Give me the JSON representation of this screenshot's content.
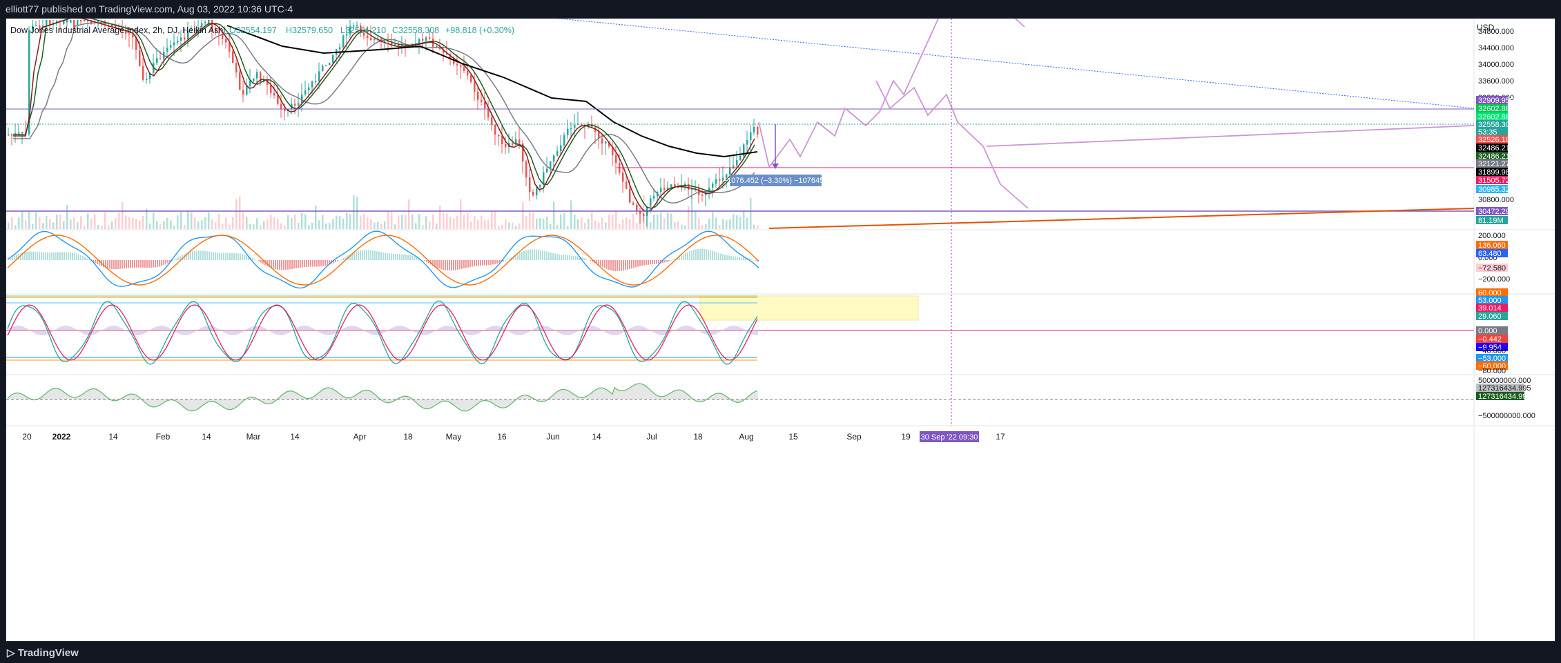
{
  "header": {
    "published": "elliott77 published on TradingView.com, Aug 03, 2022 10:36 UTC-4"
  },
  "footer": {
    "brand": "TradingView"
  },
  "legend": {
    "symbol": "Dow Jones Industrial Average Index, 2h, DJ, Heikin Ashi",
    "o": "O32554.197",
    "h": "H32579.650",
    "l": "L32514.210",
    "c": "C32558.308",
    "change": "+98.818 (+0.30%)"
  },
  "colors": {
    "up": "#26a69a",
    "down": "#ef5350",
    "purple": "#9c27b0",
    "fill_green": "#c8e6c9",
    "fill_red": "#f8bbd0"
  },
  "chart_data": {
    "type": "candlestick",
    "currency": "USD",
    "price_ticks": [
      "34800.000",
      "34400.000",
      "34000.000",
      "33600.000",
      "33200.000",
      "30800.000"
    ],
    "price_labels": [
      {
        "text": "32909.959",
        "bg": "#7e57c2",
        "fg": "#ffffff"
      },
      {
        "text": "32602.880",
        "bg": "#00c853",
        "fg": "#ffffff"
      },
      {
        "text": "32602.880",
        "bg": "#00e676",
        "fg": "#ffffff"
      },
      {
        "text": "32558.308",
        "bg": "#26a69a",
        "fg": "#ffffff"
      },
      {
        "text": "53:35",
        "bg": "#26a69a",
        "fg": "#ffffff"
      },
      {
        "text": "32526.161",
        "bg": "#ef5350",
        "fg": "#ffffff"
      },
      {
        "text": "32486.218",
        "bg": "#000000",
        "fg": "#ffffff"
      },
      {
        "text": "32486.218",
        "bg": "#1b5e20",
        "fg": "#ffffff"
      },
      {
        "text": "32121.271",
        "bg": "#787b86",
        "fg": "#ffffff"
      },
      {
        "text": "31899.983",
        "bg": "#000000",
        "fg": "#ffffff"
      },
      {
        "text": "31505.727",
        "bg": "#e91e63",
        "fg": "#ffffff"
      },
      {
        "text": "30985.326",
        "bg": "#29b6f6",
        "fg": "#ffffff"
      },
      {
        "text": "30472.292",
        "bg": "#7e57c2",
        "fg": "#ffffff"
      },
      {
        "text": "81.19M",
        "bg": "#26a69a",
        "fg": "#ffffff"
      }
    ],
    "measure_label": "−1076.452 (−3.30%) −1076452",
    "macd_ticks": [
      "200.000",
      "0.000",
      "−200.000"
    ],
    "macd_labels": [
      {
        "text": "136.060",
        "bg": "#ff6d00",
        "fg": "#ffffff"
      },
      {
        "text": "63.480",
        "bg": "#2962ff",
        "fg": "#ffffff"
      },
      {
        "text": "−72.580",
        "bg": "#ffcdd2",
        "fg": "#131722"
      }
    ],
    "stoch_labels": [
      {
        "text": "60.000",
        "bg": "#ff6d00",
        "fg": "#ffffff"
      },
      {
        "text": "53.000",
        "bg": "#2196f3",
        "fg": "#ffffff"
      },
      {
        "text": "39.014",
        "bg": "#e91e63",
        "fg": "#ffffff"
      },
      {
        "text": "29.060",
        "bg": "#26a69a",
        "fg": "#ffffff"
      },
      {
        "text": "0.000",
        "bg": "#787b86",
        "fg": "#ffffff"
      },
      {
        "text": "−0.442",
        "bg": "#f44336",
        "fg": "#ffffff"
      },
      {
        "text": "−9.954",
        "bg": "#2000ff",
        "fg": "#ffffff"
      },
      {
        "text": "−53.000",
        "bg": "#2196f3",
        "fg": "#ffffff"
      },
      {
        "text": "−60.000",
        "bg": "#ff6d00",
        "fg": "#ffffff"
      }
    ],
    "stoch_ticks": [
      "−40.000",
      "−80.000"
    ],
    "obv_ticks": [
      "500000000.000",
      "−500000000.000"
    ],
    "obv_labels": [
      {
        "text": "127316434.995",
        "bg": "#bdbdbd",
        "fg": "#131722"
      },
      {
        "text": "127316434.995",
        "bg": "#1b5e20",
        "fg": "#ffffff"
      }
    ],
    "time_labels": [
      "20",
      "2022",
      "14",
      "Feb",
      "14",
      "Mar",
      "14",
      "Apr",
      "18",
      "May",
      "16",
      "Jun",
      "14",
      "Jul",
      "18",
      "Aug",
      "15",
      "Sep",
      "19",
      "17"
    ],
    "crosshair_label": "30 Sep '22  09:30"
  }
}
